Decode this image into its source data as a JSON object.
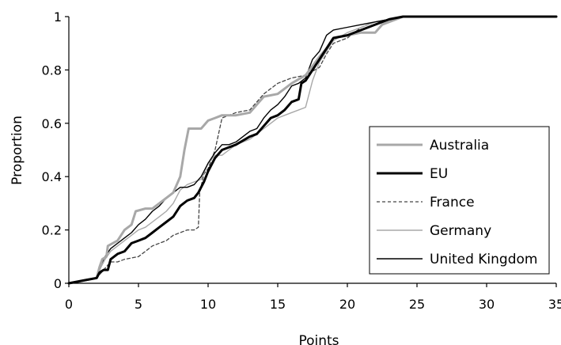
{
  "chart_data": {
    "type": "line",
    "title": "",
    "xlabel": "Points",
    "ylabel": "Proportion",
    "xlim": [
      0,
      35
    ],
    "ylim": [
      0,
      1
    ],
    "x_ticks": [
      0,
      5,
      10,
      15,
      20,
      25,
      30,
      35
    ],
    "y_ticks": [
      0,
      0.2,
      0.4,
      0.6,
      0.8,
      1
    ],
    "x_tick_labels": [
      "0",
      "5",
      "10",
      "15",
      "20",
      "25",
      "30",
      "35"
    ],
    "y_tick_labels": [
      "0",
      "0.2",
      "0.4",
      "0.6",
      "0.8",
      "1"
    ],
    "grid": false,
    "legend_position": "lower-right",
    "series": [
      {
        "name": "Australia",
        "color": "#a8a8a8",
        "style": "thick",
        "points": [
          [
            0,
            0
          ],
          [
            1,
            0.01
          ],
          [
            2,
            0.02
          ],
          [
            2.2,
            0.06
          ],
          [
            2.4,
            0.09
          ],
          [
            2.7,
            0.1
          ],
          [
            2.8,
            0.14
          ],
          [
            3.5,
            0.16
          ],
          [
            4,
            0.2
          ],
          [
            4.5,
            0.22
          ],
          [
            4.8,
            0.27
          ],
          [
            5.5,
            0.28
          ],
          [
            6,
            0.28
          ],
          [
            6.5,
            0.3
          ],
          [
            7,
            0.32
          ],
          [
            7.5,
            0.34
          ],
          [
            8,
            0.4
          ],
          [
            8.3,
            0.5
          ],
          [
            8.6,
            0.58
          ],
          [
            9,
            0.58
          ],
          [
            9.5,
            0.58
          ],
          [
            10,
            0.61
          ],
          [
            10.5,
            0.62
          ],
          [
            11,
            0.63
          ],
          [
            12,
            0.63
          ],
          [
            13,
            0.64
          ],
          [
            14,
            0.7
          ],
          [
            15,
            0.71
          ],
          [
            16,
            0.75
          ],
          [
            17,
            0.78
          ],
          [
            18,
            0.85
          ],
          [
            18.5,
            0.88
          ],
          [
            19,
            0.92
          ],
          [
            20,
            0.93
          ],
          [
            21,
            0.94
          ],
          [
            22,
            0.94
          ],
          [
            22.5,
            0.97
          ],
          [
            23,
            0.98
          ],
          [
            24,
            1
          ],
          [
            35,
            1
          ]
        ]
      },
      {
        "name": "EU",
        "color": "#000000",
        "style": "thick",
        "points": [
          [
            0,
            0
          ],
          [
            1,
            0.01
          ],
          [
            2,
            0.02
          ],
          [
            2.2,
            0.04
          ],
          [
            2.5,
            0.05
          ],
          [
            2.8,
            0.05
          ],
          [
            3,
            0.09
          ],
          [
            3.5,
            0.11
          ],
          [
            4,
            0.12
          ],
          [
            4.5,
            0.15
          ],
          [
            5,
            0.16
          ],
          [
            5.5,
            0.17
          ],
          [
            6,
            0.19
          ],
          [
            6.5,
            0.21
          ],
          [
            7,
            0.23
          ],
          [
            7.5,
            0.25
          ],
          [
            8,
            0.29
          ],
          [
            8.5,
            0.31
          ],
          [
            9,
            0.32
          ],
          [
            9.3,
            0.34
          ],
          [
            9.7,
            0.38
          ],
          [
            10,
            0.42
          ],
          [
            10.5,
            0.47
          ],
          [
            11,
            0.5
          ],
          [
            11.5,
            0.51
          ],
          [
            12,
            0.52
          ],
          [
            13,
            0.55
          ],
          [
            13.5,
            0.56
          ],
          [
            14,
            0.59
          ],
          [
            14.5,
            0.62
          ],
          [
            15,
            0.63
          ],
          [
            15.5,
            0.65
          ],
          [
            16,
            0.68
          ],
          [
            16.5,
            0.69
          ],
          [
            16.7,
            0.75
          ],
          [
            17,
            0.76
          ],
          [
            17.5,
            0.8
          ],
          [
            18,
            0.84
          ],
          [
            18.5,
            0.88
          ],
          [
            19,
            0.92
          ],
          [
            20,
            0.93
          ],
          [
            21,
            0.95
          ],
          [
            22,
            0.97
          ],
          [
            23,
            0.99
          ],
          [
            24,
            1
          ],
          [
            35,
            1
          ]
        ]
      },
      {
        "name": "France",
        "color": "#444444",
        "style": "dashed",
        "points": [
          [
            0,
            0
          ],
          [
            1,
            0.01
          ],
          [
            2,
            0.02
          ],
          [
            2.5,
            0.05
          ],
          [
            3,
            0.08
          ],
          [
            3.5,
            0.08
          ],
          [
            4,
            0.09
          ],
          [
            5,
            0.1
          ],
          [
            5.5,
            0.12
          ],
          [
            6,
            0.14
          ],
          [
            6.5,
            0.15
          ],
          [
            7,
            0.16
          ],
          [
            7.5,
            0.18
          ],
          [
            8,
            0.19
          ],
          [
            8.5,
            0.2
          ],
          [
            9,
            0.2
          ],
          [
            9.3,
            0.21
          ],
          [
            9.4,
            0.34
          ],
          [
            9.7,
            0.41
          ],
          [
            10,
            0.43
          ],
          [
            10.5,
            0.5
          ],
          [
            11,
            0.62
          ],
          [
            12,
            0.64
          ],
          [
            13,
            0.65
          ],
          [
            14,
            0.71
          ],
          [
            15,
            0.75
          ],
          [
            16,
            0.77
          ],
          [
            17,
            0.78
          ],
          [
            18,
            0.81
          ],
          [
            18.5,
            0.86
          ],
          [
            19,
            0.9
          ],
          [
            20,
            0.92
          ],
          [
            21,
            0.96
          ],
          [
            22,
            0.98
          ],
          [
            23,
            0.99
          ],
          [
            24,
            1
          ],
          [
            35,
            1
          ]
        ]
      },
      {
        "name": "Germany",
        "color": "#a8a8a8",
        "style": "thin",
        "points": [
          [
            0,
            0
          ],
          [
            1,
            0.01
          ],
          [
            2,
            0.02
          ],
          [
            2.3,
            0.06
          ],
          [
            2.6,
            0.09
          ],
          [
            3,
            0.12
          ],
          [
            3.5,
            0.14
          ],
          [
            4,
            0.16
          ],
          [
            4.5,
            0.18
          ],
          [
            5,
            0.2
          ],
          [
            5.5,
            0.21
          ],
          [
            6,
            0.23
          ],
          [
            6.5,
            0.25
          ],
          [
            7,
            0.27
          ],
          [
            7.5,
            0.3
          ],
          [
            8,
            0.35
          ],
          [
            8.5,
            0.37
          ],
          [
            9,
            0.38
          ],
          [
            9.5,
            0.39
          ],
          [
            10,
            0.45
          ],
          [
            10.5,
            0.48
          ],
          [
            11,
            0.48
          ],
          [
            11.5,
            0.5
          ],
          [
            12,
            0.52
          ],
          [
            13,
            0.54
          ],
          [
            13.5,
            0.56
          ],
          [
            14,
            0.58
          ],
          [
            14.5,
            0.6
          ],
          [
            15,
            0.62
          ],
          [
            15.5,
            0.63
          ],
          [
            16,
            0.64
          ],
          [
            17,
            0.66
          ],
          [
            17.5,
            0.76
          ],
          [
            18,
            0.83
          ],
          [
            18.5,
            0.87
          ],
          [
            19,
            0.91
          ],
          [
            20,
            0.94
          ],
          [
            21,
            0.96
          ],
          [
            22,
            0.98
          ],
          [
            23,
            0.99
          ],
          [
            24,
            1
          ],
          [
            35,
            1
          ]
        ]
      },
      {
        "name": "United Kingdom",
        "color": "#000000",
        "style": "thin",
        "points": [
          [
            0,
            0
          ],
          [
            1,
            0.01
          ],
          [
            2,
            0.02
          ],
          [
            2.3,
            0.07
          ],
          [
            2.6,
            0.1
          ],
          [
            3,
            0.13
          ],
          [
            3.5,
            0.15
          ],
          [
            4,
            0.17
          ],
          [
            4.5,
            0.19
          ],
          [
            5,
            0.22
          ],
          [
            5.5,
            0.24
          ],
          [
            6,
            0.27
          ],
          [
            6.5,
            0.29
          ],
          [
            7,
            0.32
          ],
          [
            7.5,
            0.34
          ],
          [
            8,
            0.36
          ],
          [
            8.5,
            0.36
          ],
          [
            9,
            0.37
          ],
          [
            9.5,
            0.4
          ],
          [
            10,
            0.45
          ],
          [
            10.5,
            0.49
          ],
          [
            11,
            0.52
          ],
          [
            11.5,
            0.52
          ],
          [
            12,
            0.53
          ],
          [
            13,
            0.57
          ],
          [
            13.5,
            0.58
          ],
          [
            14,
            0.62
          ],
          [
            14.5,
            0.65
          ],
          [
            15,
            0.67
          ],
          [
            15.5,
            0.7
          ],
          [
            16,
            0.74
          ],
          [
            16.5,
            0.75
          ],
          [
            17,
            0.77
          ],
          [
            17.5,
            0.84
          ],
          [
            18,
            0.87
          ],
          [
            18.5,
            0.93
          ],
          [
            19,
            0.95
          ],
          [
            20,
            0.96
          ],
          [
            21,
            0.97
          ],
          [
            22,
            0.98
          ],
          [
            23,
            0.99
          ],
          [
            24,
            1
          ],
          [
            35,
            1
          ]
        ]
      }
    ]
  }
}
